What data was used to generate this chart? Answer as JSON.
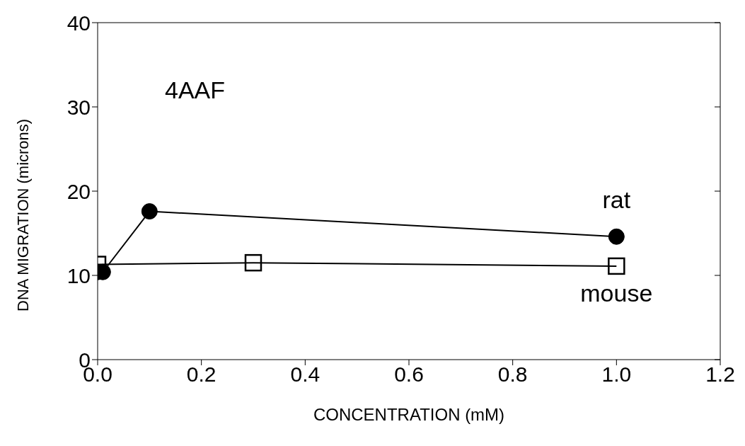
{
  "chart_data": {
    "type": "line",
    "xlabel": "CONCENTRATION (mM)",
    "ylabel": "DNA MIGRATION (microns)",
    "annotations": [
      "4AAF"
    ],
    "xlim": [
      0,
      1.2
    ],
    "xticks": [
      {
        "value": 0,
        "label": "0.0"
      },
      {
        "value": 0.2,
        "label": "0.2"
      },
      {
        "value": 0.4,
        "label": "0.4"
      },
      {
        "value": 0.6,
        "label": "0.6"
      },
      {
        "value": 0.8,
        "label": "0.8"
      },
      {
        "value": 1,
        "label": "1.0"
      },
      {
        "value": 1.2,
        "label": "1.2"
      }
    ],
    "ylim": [
      0,
      40
    ],
    "yticks": [
      0,
      10,
      20,
      30,
      40
    ],
    "grid": false,
    "legend": false,
    "series": [
      {
        "name": "rat",
        "color": "#000000",
        "marker": "circle",
        "x": [
          0,
          0.01,
          0.1,
          1
        ],
        "values": [
          10.4,
          10.4,
          17.6,
          14.6
        ]
      },
      {
        "name": "mouse",
        "color": "#000000",
        "marker": "square",
        "x": [
          0,
          0.3,
          1
        ],
        "values": [
          11.3,
          11.5,
          11.1
        ]
      }
    ]
  }
}
